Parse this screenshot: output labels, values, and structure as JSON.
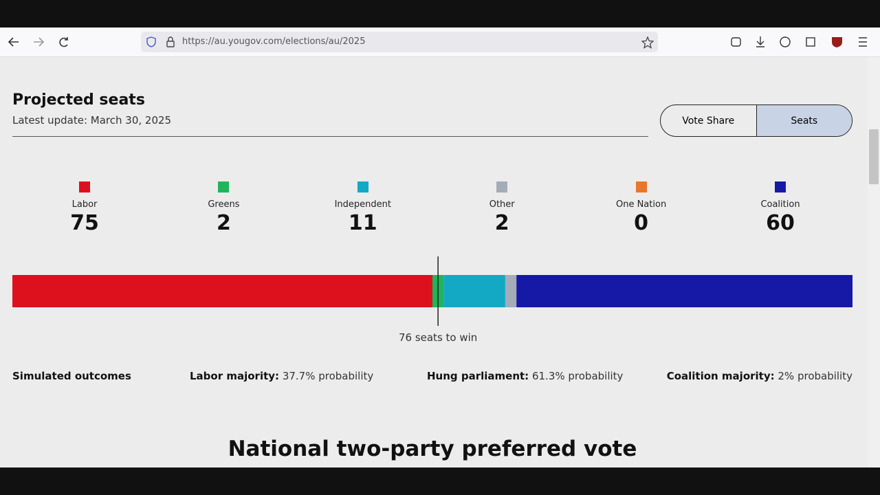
{
  "browser": {
    "url": "https://au.yougov.com/elections/au/2025"
  },
  "page": {
    "title": "Projected seats",
    "subtitle": "Latest update: March 30, 2025",
    "toggle": [
      "Vote Share",
      "Seats"
    ],
    "parties": [
      {
        "name": "Labor",
        "color": "#dd111e",
        "seats": 75
      },
      {
        "name": "Greens",
        "color": "#1fb55a",
        "seats": 2
      },
      {
        "name": "Independent",
        "color": "#13a8c4",
        "seats": 11
      },
      {
        "name": "Other",
        "color": "#a4acb8",
        "seats": 2
      },
      {
        "name": "One Nation",
        "color": "#e8762d",
        "seats": 0
      },
      {
        "name": "Coalition",
        "color": "#1619a6",
        "seats": 60
      }
    ],
    "majority": {
      "value": 76,
      "label": "76 seats to win"
    },
    "outcomes": {
      "title": "Simulated outcomes",
      "items": [
        {
          "label": "Labor majority:",
          "value": "37.7% probability"
        },
        {
          "label": "Hung parliament:",
          "value": "61.3% probability"
        },
        {
          "label": "Coalition majority:",
          "value": "2% probability"
        }
      ]
    },
    "next_heading": "National two-party preferred vote"
  }
}
